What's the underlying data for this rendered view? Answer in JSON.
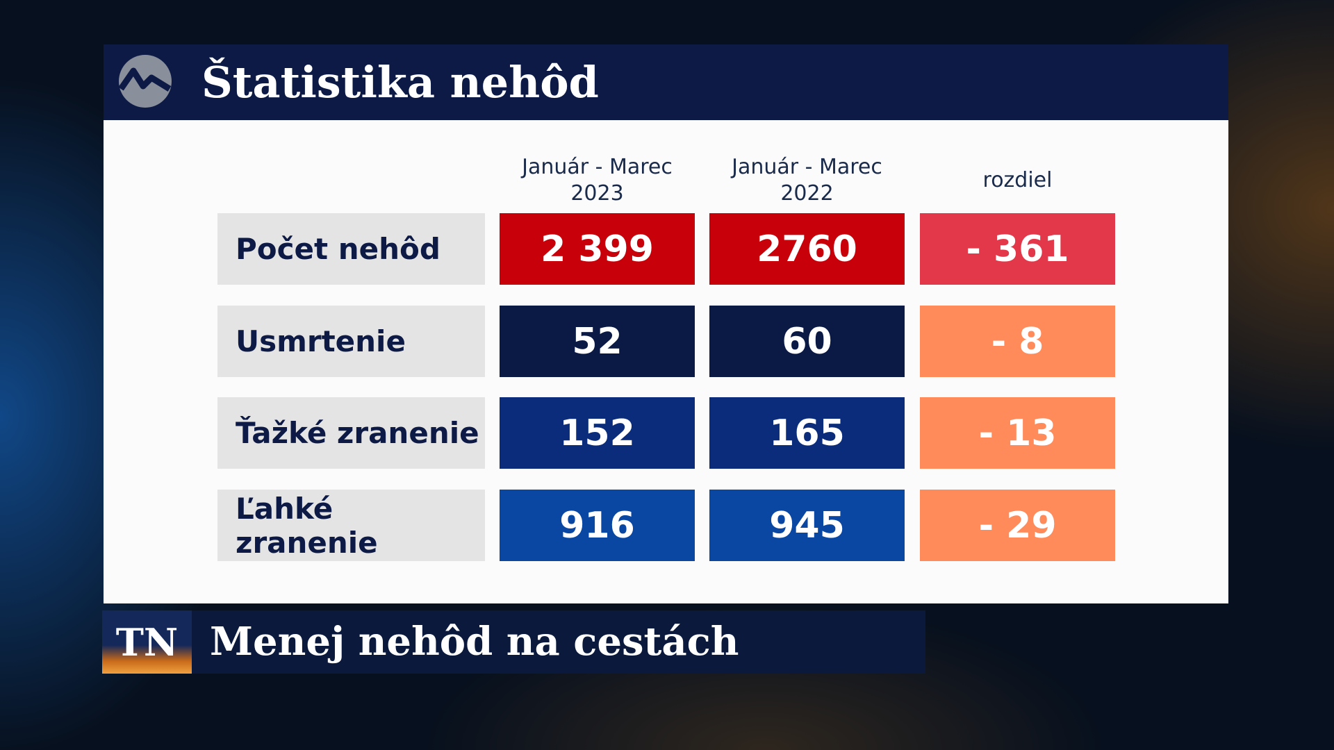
{
  "header": {
    "title": "Štatistika nehôd"
  },
  "table": {
    "columns": [
      "Január - Marec 2023",
      "Január - Marec 2022",
      "rozdiel"
    ],
    "rows": [
      {
        "label": "Počet nehôd",
        "values": [
          "2 399",
          "2760",
          "- 361"
        ]
      },
      {
        "label": "Usmrtenie",
        "values": [
          "52",
          "60",
          "- 8"
        ]
      },
      {
        "label": "Ťažké zranenie",
        "values": [
          "152",
          "165",
          "- 13"
        ]
      },
      {
        "label": "Ľahké zranenie",
        "values": [
          "916",
          "945",
          "- 29"
        ]
      }
    ]
  },
  "footer": {
    "badge": "TN",
    "headline": "Menej nehôd na cestách"
  }
}
